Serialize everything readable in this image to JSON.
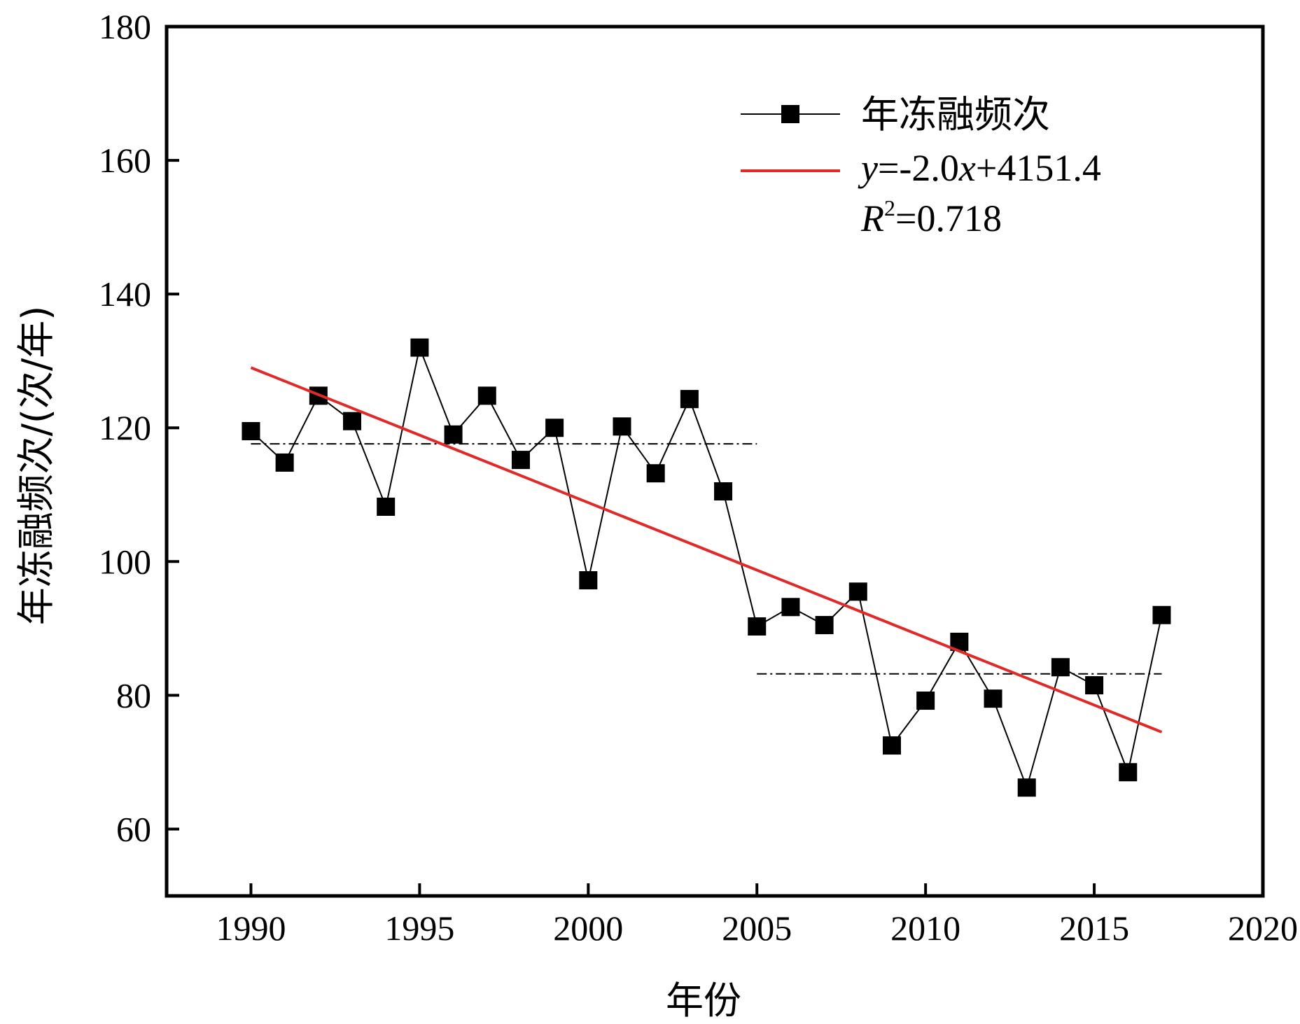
{
  "chart_data": {
    "type": "line",
    "title": "",
    "xlabel": "年份",
    "ylabel": "年冻融频次/(次/年)",
    "xlim": [
      1987.5,
      2020
    ],
    "ylim": [
      50,
      180
    ],
    "xticks": [
      1990,
      1995,
      2000,
      2005,
      2010,
      2015,
      2020
    ],
    "yticks": [
      60,
      80,
      100,
      120,
      140,
      160,
      180
    ],
    "grid": false,
    "legend_position": "top-right",
    "series": [
      {
        "name": "年冻融频次",
        "color": "#000000",
        "marker": "square",
        "x": [
          1990,
          1991,
          1992,
          1993,
          1994,
          1995,
          1996,
          1997,
          1998,
          1999,
          2000,
          2001,
          2002,
          2003,
          2004,
          2005,
          2006,
          2007,
          2008,
          2009,
          2010,
          2011,
          2012,
          2013,
          2014,
          2015,
          2016,
          2017
        ],
        "y": [
          119.5,
          114.8,
          124.8,
          121.0,
          108.2,
          132.0,
          119.0,
          124.8,
          115.2,
          120.0,
          97.2,
          120.2,
          113.2,
          124.3,
          110.5,
          90.3,
          93.2,
          90.5,
          95.5,
          72.5,
          79.2,
          88.0,
          79.5,
          66.2,
          84.2,
          81.5,
          68.5,
          92.0
        ]
      }
    ],
    "trend_line": {
      "color": "#e02a2a",
      "x": [
        1990,
        2017
      ],
      "y": [
        129.0,
        74.5
      ],
      "equation_y_prefix": "y",
      "equation_body": "=-2.0",
      "equation_x": "x",
      "equation_suffix": "+4151.4",
      "r2_symbol": "R",
      "r2_sup": "2",
      "r2_value": "=0.718"
    },
    "mean_lines": [
      {
        "x": [
          1990,
          2005
        ],
        "y": [
          117.6,
          117.6
        ]
      },
      {
        "x": [
          2005,
          2017
        ],
        "y": [
          83.2,
          83.2
        ]
      }
    ]
  }
}
